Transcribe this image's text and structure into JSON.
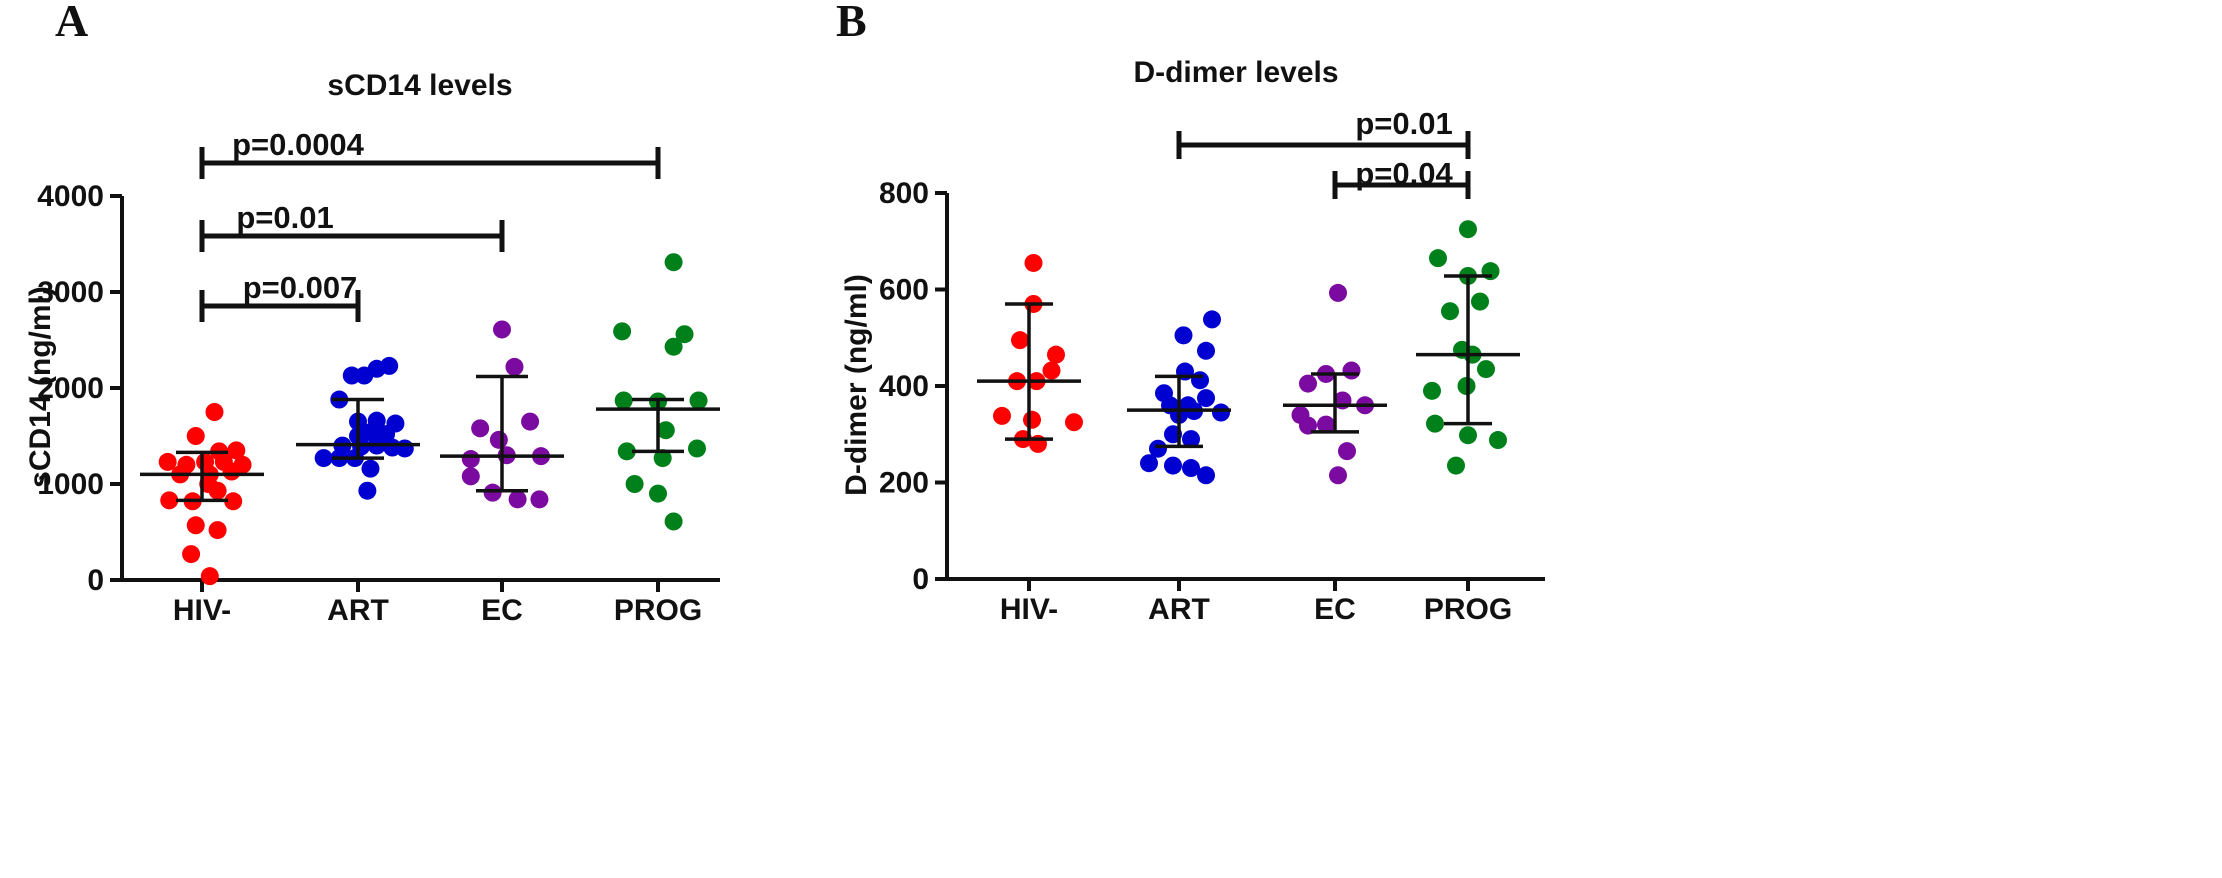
{
  "chart_data": [
    {
      "type": "scatter",
      "panel_label": "A",
      "title": "sCD14 levels",
      "xlabel": "",
      "ylabel": "sCD14 (ng/ml)",
      "ylim": [
        0,
        4000
      ],
      "yticks": [
        0,
        1000,
        2000,
        3000,
        4000
      ],
      "categories": [
        "HIV-",
        "ART",
        "EC",
        "PROG"
      ],
      "series": [
        {
          "name": "HIV-",
          "color": "#ff0000",
          "summary": {
            "median": 1100,
            "q1": 830,
            "q3": 1330
          },
          "points": [
            [
              -0.22,
              1230
            ],
            [
              -0.1,
              1200
            ],
            [
              0.02,
              1230
            ],
            [
              0.14,
              1230
            ],
            [
              0.26,
              1200
            ],
            [
              -0.04,
              1500
            ],
            [
              0.11,
              1340
            ],
            [
              0.22,
              1350
            ],
            [
              0.08,
              1750
            ],
            [
              -0.14,
              1100
            ],
            [
              0.05,
              1100
            ],
            [
              0.19,
              1130
            ],
            [
              -0.21,
              830
            ],
            [
              -0.06,
              820
            ],
            [
              0.1,
              930
            ],
            [
              0.2,
              820
            ],
            [
              0.04,
              1000
            ],
            [
              -0.04,
              570
            ],
            [
              0.1,
              520
            ],
            [
              -0.07,
              270
            ],
            [
              0.05,
              40
            ]
          ]
        },
        {
          "name": "ART",
          "color": "#0000d0",
          "summary": {
            "median": 1410,
            "q1": 1270,
            "q3": 1880
          },
          "points": [
            [
              -0.04,
              2130
            ],
            [
              0.04,
              2130
            ],
            [
              0.12,
              2200
            ],
            [
              0.2,
              2230
            ],
            [
              -0.12,
              1880
            ],
            [
              0.0,
              1650
            ],
            [
              0.12,
              1660
            ],
            [
              0.24,
              1630
            ],
            [
              0.0,
              1500
            ],
            [
              0.08,
              1540
            ],
            [
              0.18,
              1520
            ],
            [
              -0.1,
              1400
            ],
            [
              0.02,
              1390
            ],
            [
              0.12,
              1400
            ],
            [
              0.22,
              1380
            ],
            [
              0.3,
              1370
            ],
            [
              -0.22,
              1270
            ],
            [
              -0.12,
              1270
            ],
            [
              -0.02,
              1270
            ],
            [
              0.08,
              1160
            ],
            [
              0.06,
              930
            ]
          ]
        },
        {
          "name": "EC",
          "color": "#7b0aa0",
          "summary": {
            "median": 1290,
            "q1": 930,
            "q3": 2120
          },
          "points": [
            [
              0.0,
              2610
            ],
            [
              0.08,
              2220
            ],
            [
              -0.14,
              1580
            ],
            [
              0.18,
              1650
            ],
            [
              -0.02,
              1460
            ],
            [
              -0.2,
              1260
            ],
            [
              0.03,
              1300
            ],
            [
              0.25,
              1290
            ],
            [
              -0.2,
              1080
            ],
            [
              -0.06,
              910
            ],
            [
              0.1,
              840
            ],
            [
              0.24,
              840
            ]
          ]
        },
        {
          "name": "PROG",
          "color": "#00801a",
          "summary": {
            "median": 1780,
            "q1": 1340,
            "q3": 1880
          },
          "points": [
            [
              0.1,
              3310
            ],
            [
              -0.23,
              2590
            ],
            [
              0.17,
              2560
            ],
            [
              0.1,
              2430
            ],
            [
              -0.22,
              1870
            ],
            [
              0.0,
              1860
            ],
            [
              0.26,
              1870
            ],
            [
              0.05,
              1560
            ],
            [
              -0.2,
              1340
            ],
            [
              0.25,
              1370
            ],
            [
              0.03,
              1270
            ],
            [
              -0.15,
              1000
            ],
            [
              0.0,
              900
            ],
            [
              0.1,
              610
            ]
          ]
        }
      ],
      "comparisons": [
        {
          "from": "HIV-",
          "to": "ART",
          "label": "p=0.007"
        },
        {
          "from": "HIV-",
          "to": "EC",
          "label": "p=0.01"
        },
        {
          "from": "HIV-",
          "to": "PROG",
          "label": "p=0.0004"
        }
      ]
    },
    {
      "type": "scatter",
      "panel_label": "B",
      "title": "D-dimer levels",
      "xlabel": "",
      "ylabel": "D-dimer (ng/ml)",
      "ylim": [
        0,
        800
      ],
      "yticks": [
        0,
        200,
        400,
        600,
        800
      ],
      "categories": [
        "HIV-",
        "ART",
        "EC",
        "PROG"
      ],
      "series": [
        {
          "name": "HIV-",
          "color": "#ff0000",
          "summary": {
            "median": 410,
            "q1": 290,
            "q3": 570
          },
          "points": [
            [
              0.03,
              655
            ],
            [
              0.03,
              570
            ],
            [
              -0.06,
              495
            ],
            [
              0.18,
              465
            ],
            [
              0.15,
              432
            ],
            [
              -0.08,
              410
            ],
            [
              0.05,
              410
            ],
            [
              -0.18,
              338
            ],
            [
              0.02,
              330
            ],
            [
              0.3,
              325
            ],
            [
              -0.04,
              290
            ],
            [
              0.06,
              280
            ]
          ]
        },
        {
          "name": "ART",
          "color": "#0000d0",
          "summary": {
            "median": 350,
            "q1": 275,
            "q3": 420
          },
          "points": [
            [
              0.22,
              538
            ],
            [
              0.03,
              505
            ],
            [
              0.18,
              473
            ],
            [
              0.04,
              430
            ],
            [
              0.14,
              412
            ],
            [
              -0.1,
              385
            ],
            [
              0.06,
              360
            ],
            [
              0.18,
              375
            ],
            [
              0.28,
              345
            ],
            [
              -0.06,
              360
            ],
            [
              0.0,
              340
            ],
            [
              0.1,
              348
            ],
            [
              -0.04,
              300
            ],
            [
              0.08,
              290
            ],
            [
              -0.14,
              270
            ],
            [
              -0.2,
              240
            ],
            [
              -0.04,
              235
            ],
            [
              0.08,
              230
            ],
            [
              0.18,
              215
            ]
          ]
        },
        {
          "name": "EC",
          "color": "#7b0aa0",
          "summary": {
            "median": 360,
            "q1": 305,
            "q3": 425
          },
          "points": [
            [
              0.02,
              593
            ],
            [
              -0.18,
              405
            ],
            [
              -0.06,
              425
            ],
            [
              0.11,
              432
            ],
            [
              0.05,
              370
            ],
            [
              -0.23,
              340
            ],
            [
              0.2,
              360
            ],
            [
              -0.18,
              318
            ],
            [
              -0.06,
              320
            ],
            [
              0.08,
              265
            ],
            [
              0.02,
              215
            ]
          ]
        },
        {
          "name": "PROG",
          "color": "#00801a",
          "summary": {
            "median": 465,
            "q1": 322,
            "q3": 628
          },
          "points": [
            [
              0.0,
              725
            ],
            [
              -0.2,
              665
            ],
            [
              0.15,
              638
            ],
            [
              0.0,
              628
            ],
            [
              0.08,
              575
            ],
            [
              -0.12,
              555
            ],
            [
              -0.04,
              475
            ],
            [
              0.03,
              465
            ],
            [
              0.12,
              435
            ],
            [
              -0.24,
              390
            ],
            [
              -0.01,
              400
            ],
            [
              -0.22,
              322
            ],
            [
              0.0,
              298
            ],
            [
              0.2,
              288
            ],
            [
              -0.08,
              235
            ]
          ]
        }
      ],
      "comparisons": [
        {
          "from": "ART",
          "to": "PROG",
          "label": "p=0.01"
        },
        {
          "from": "EC",
          "to": "PROG",
          "label": "p=0.04"
        }
      ]
    }
  ]
}
